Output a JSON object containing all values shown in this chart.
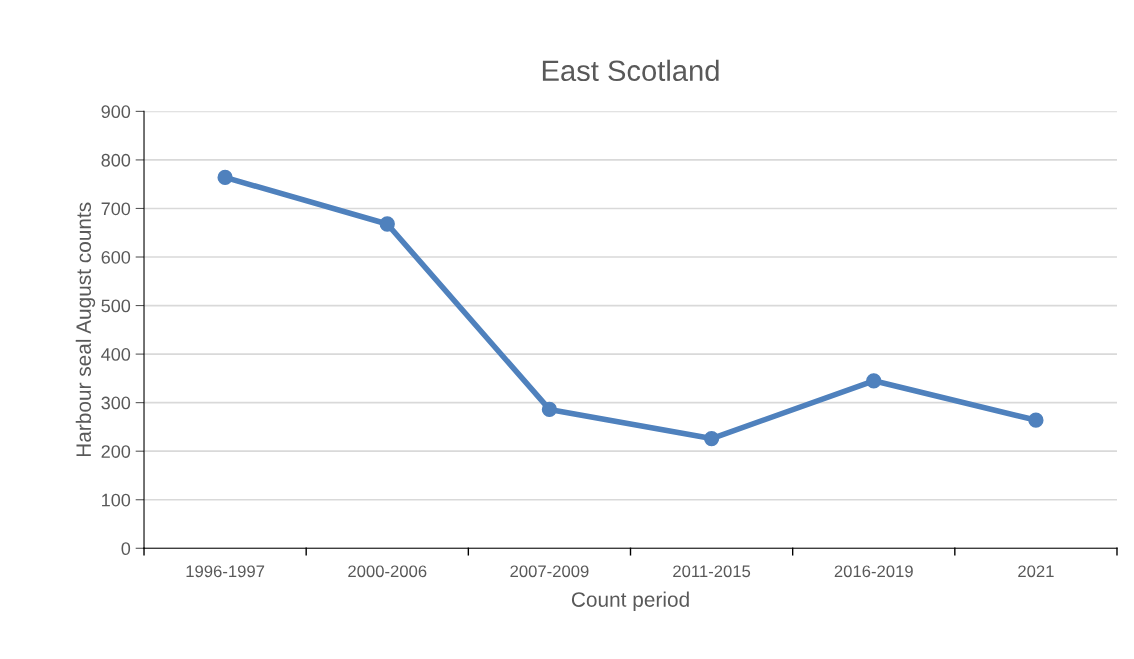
{
  "chart_data": {
    "type": "line",
    "title": "East Scotland",
    "xlabel": "Count period",
    "ylabel": "Harbour seal August counts",
    "categories": [
      "1996-1997",
      "2000-2006",
      "2007-2009",
      "2011-2015",
      "2016-2019",
      "2021"
    ],
    "series": [
      {
        "color": "#4f81bd",
        "values": [
          764,
          668,
          286,
          226,
          345,
          264
        ]
      }
    ],
    "ylim": [
      0,
      900
    ],
    "yticks": [
      0,
      100,
      200,
      300,
      400,
      500,
      600,
      700,
      800,
      900
    ],
    "grid": "y",
    "marker": "circle",
    "line_style": "solid"
  }
}
